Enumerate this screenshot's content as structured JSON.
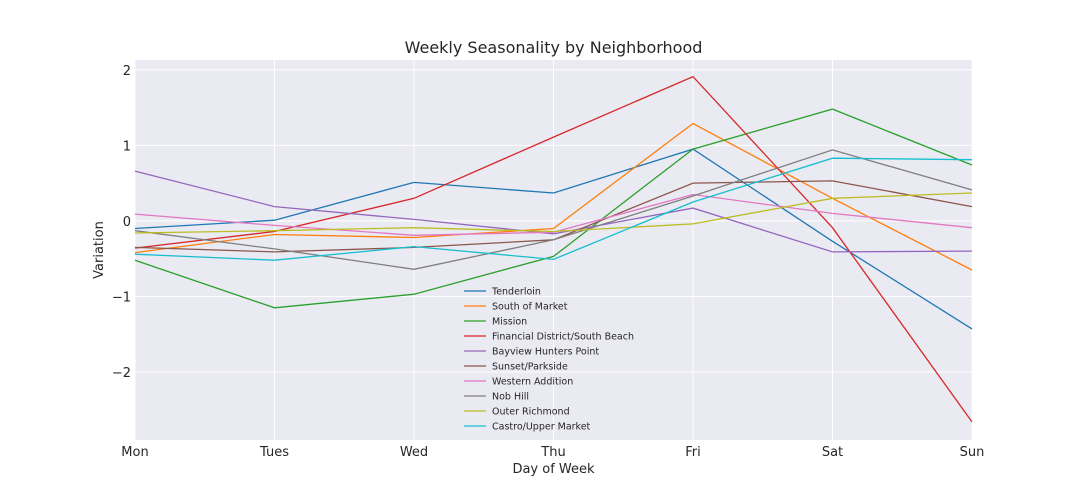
{
  "chart_data": {
    "type": "line",
    "title": "Weekly Seasonality by Neighborhood",
    "xlabel": "Day of Week",
    "ylabel": "Variation",
    "categories": [
      "Mon",
      "Tues",
      "Wed",
      "Thu",
      "Fri",
      "Sat",
      "Sun"
    ],
    "ylim": [
      -2.9,
      2.13
    ],
    "yticks": [
      2,
      1,
      0,
      -1,
      -2
    ],
    "ytick_labels": [
      "2",
      "1",
      "0",
      "−1",
      "−2"
    ],
    "grid": true,
    "legend_position": "bottom-center",
    "series": [
      {
        "name": "Tenderloin",
        "color": "#1f77b4",
        "values": [
          -0.1,
          0.01,
          0.51,
          0.37,
          0.95,
          -0.27,
          -1.43
        ]
      },
      {
        "name": "South of Market",
        "color": "#ff7f0e",
        "values": [
          -0.42,
          -0.18,
          -0.22,
          -0.1,
          1.29,
          0.3,
          -0.65
        ]
      },
      {
        "name": "Mission",
        "color": "#2ca02c",
        "values": [
          -0.52,
          -1.15,
          -0.97,
          -0.47,
          0.95,
          1.48,
          0.74
        ]
      },
      {
        "name": "Financial District/South Beach",
        "color": "#d62728",
        "values": [
          -0.36,
          -0.14,
          0.3,
          1.11,
          1.91,
          -0.09,
          -2.66
        ]
      },
      {
        "name": "Bayview Hunters Point",
        "color": "#9467bd",
        "values": [
          0.66,
          0.19,
          0.02,
          -0.17,
          0.17,
          -0.41,
          -0.4
        ]
      },
      {
        "name": "Sunset/Parkside",
        "color": "#8c564b",
        "values": [
          -0.35,
          -0.41,
          -0.35,
          -0.25,
          0.5,
          0.53,
          0.19
        ]
      },
      {
        "name": "Western Addition",
        "color": "#e377c2",
        "values": [
          0.09,
          -0.06,
          -0.19,
          -0.15,
          0.35,
          0.1,
          -0.09
        ]
      },
      {
        "name": "Nob Hill",
        "color": "#7f7f7f",
        "values": [
          -0.13,
          -0.37,
          -0.64,
          -0.25,
          0.33,
          0.94,
          0.41
        ]
      },
      {
        "name": "Outer Richmond",
        "color": "#bcbd22",
        "values": [
          -0.16,
          -0.13,
          -0.09,
          -0.14,
          -0.04,
          0.3,
          0.37
        ]
      },
      {
        "name": "Castro/Upper Market",
        "color": "#17becf",
        "values": [
          -0.44,
          -0.52,
          -0.34,
          -0.51,
          0.25,
          0.83,
          0.81
        ]
      }
    ]
  },
  "colors": {
    "plot_background": "#eaeaf2",
    "grid": "#ffffff",
    "text": "#262626"
  }
}
